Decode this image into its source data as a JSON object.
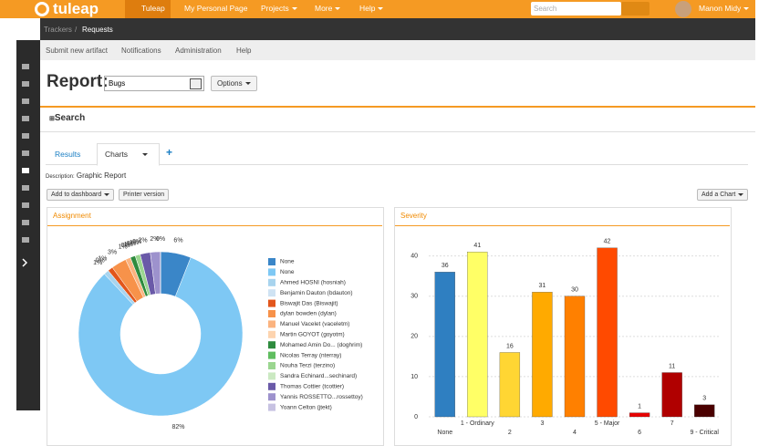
{
  "nav": {
    "logo": "tuleap",
    "items": [
      "Tuleap",
      "My Personal Page",
      "Projects",
      "More",
      "Help"
    ],
    "search": "Search",
    "user": "Manon Midy"
  },
  "breadcrumb": [
    "Trackers",
    "/",
    "Requests"
  ],
  "subnav": [
    "Submit new artifact",
    "Notifications",
    "Administration",
    "Help"
  ],
  "report": {
    "label": "Report:",
    "select": "Bugs",
    "options": "Options"
  },
  "search_title": "Search",
  "tabs": [
    "Results",
    "Charts",
    "+"
  ],
  "description": {
    "label": "Description:",
    "text": "Graphic Report"
  },
  "buttons": {
    "add_dashboard": "Add to dashboard",
    "printer": "Printer version",
    "add_chart": "Add a Chart"
  },
  "chart_data": [
    {
      "type": "pie",
      "title": "Assignment",
      "donut": true,
      "categories": [
        "None",
        "None",
        "Ahmed HOSNI (hosniah)",
        "Benjamin Dauton (bdauton)",
        "Biswajit Das (Biswajit)",
        "dylan bowden (dylan)",
        "Manuel Vacelet (vaceletm)",
        "Martin GOYOT (goyotm)",
        "Mohamed Amin Do... (doghrim)",
        "Nicolas Terray (nterray)",
        "Nouha Terzi (terzino)",
        "Sandra Echinard...sechinard)",
        "Thomas Cottier (tcottier)",
        "Yannis ROSSETTO...rossettoy)",
        "Yoann Celton (jtekt)"
      ],
      "values": [
        6,
        82,
        1,
        0,
        1,
        3,
        1,
        0,
        1,
        0,
        1,
        0,
        2,
        2,
        0
      ],
      "value_labels": [
        "6%",
        "82%",
        "1%",
        "0%",
        "1%",
        "3%",
        "1%",
        "0%",
        "1%",
        "0%",
        "1%",
        "0%",
        "2%",
        "2%",
        "0%"
      ],
      "colors": [
        "#3a86c8",
        "#7ec8f4",
        "#a8d4ee",
        "#cfe3f3",
        "#e2561c",
        "#f7924a",
        "#fbb37f",
        "#fdd4af",
        "#2e8b3e",
        "#5fbd5f",
        "#9bd690",
        "#cbe9c2",
        "#6a5aa8",
        "#9d92cd",
        "#c7c2e2"
      ]
    },
    {
      "type": "bar",
      "title": "Severity",
      "categories": [
        "None",
        "1 - Ordinary",
        "2",
        "3",
        "4",
        "5 - Major",
        "6",
        "7",
        "9 - Critical"
      ],
      "values": [
        36,
        41,
        16,
        31,
        30,
        42,
        1,
        11,
        3
      ],
      "colors": [
        "#2f7fc1",
        "#ffff66",
        "#ffd633",
        "#ffaa00",
        "#ff8000",
        "#ff4a00",
        "#e60000",
        "#b00000",
        "#4a0000"
      ],
      "ylim": [
        0,
        44
      ],
      "yticks": [
        0,
        10,
        20,
        30,
        40
      ],
      "grid": true
    }
  ]
}
